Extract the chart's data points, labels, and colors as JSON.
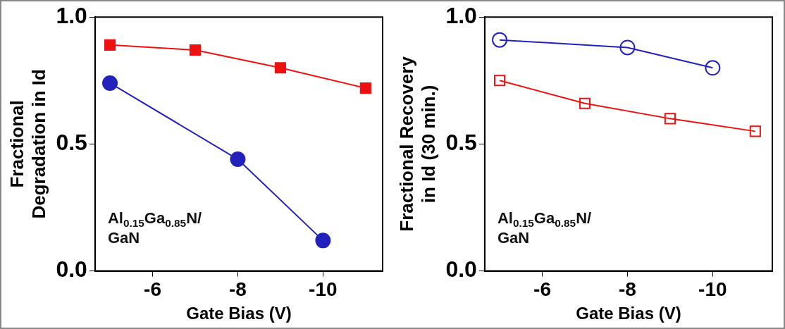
{
  "chart_data": [
    {
      "type": "line",
      "ylabel": "Fractional\nDegradation in Id",
      "xlabel": "Gate Bias (V)",
      "annotations": [
        "Al$_{0.15}$Ga$_{0.85}$N/\nGaN"
      ],
      "xlim": [
        -4.65,
        -11.4
      ],
      "xticks": [
        -6,
        -8,
        -10
      ],
      "ylim": [
        0,
        1
      ],
      "yticks": [
        {
          "value": 0,
          "label": "0.0"
        },
        {
          "value": 0.5,
          "label": "0.5"
        },
        {
          "value": 1,
          "label": "1.0"
        }
      ],
      "grid": false,
      "legend": false,
      "series": [
        {
          "color": "#ee1111",
          "marker": "square",
          "x": [
            -5,
            -7,
            -9,
            -11
          ],
          "values": [
            0.89,
            0.87,
            0.8,
            0.72
          ]
        },
        {
          "color": "#2222bb",
          "marker": "circle",
          "x": [
            -5,
            -8,
            -10
          ],
          "values": [
            0.74,
            0.44,
            0.12
          ]
        }
      ]
    },
    {
      "type": "line",
      "ylabel": "Fractional Recovery\nin Id (30 min.)",
      "xlabel": "Gate Bias (V)",
      "annotations": [
        "Al$_{0.15}$Ga$_{0.85}$N/\nGaN"
      ],
      "xlim": [
        -4.65,
        -11.4
      ],
      "xticks": [
        -6,
        -8,
        -10
      ],
      "ylim": [
        0,
        1
      ],
      "yticks": [
        {
          "value": 0,
          "label": "0.0"
        },
        {
          "value": 0.5,
          "label": "0.5"
        },
        {
          "value": 1,
          "label": "1.0"
        }
      ],
      "grid": false,
      "legend": false,
      "series": [
        {
          "color": "#2222bb",
          "marker": "circle",
          "x": [
            -5,
            -8,
            -10
          ],
          "values": [
            0.91,
            0.88,
            0.8
          ]
        },
        {
          "color": "#ee1111",
          "marker": "square",
          "x": [
            -5,
            -7,
            -9,
            -11
          ],
          "values": [
            0.75,
            0.66,
            0.6,
            0.55
          ]
        }
      ]
    }
  ]
}
